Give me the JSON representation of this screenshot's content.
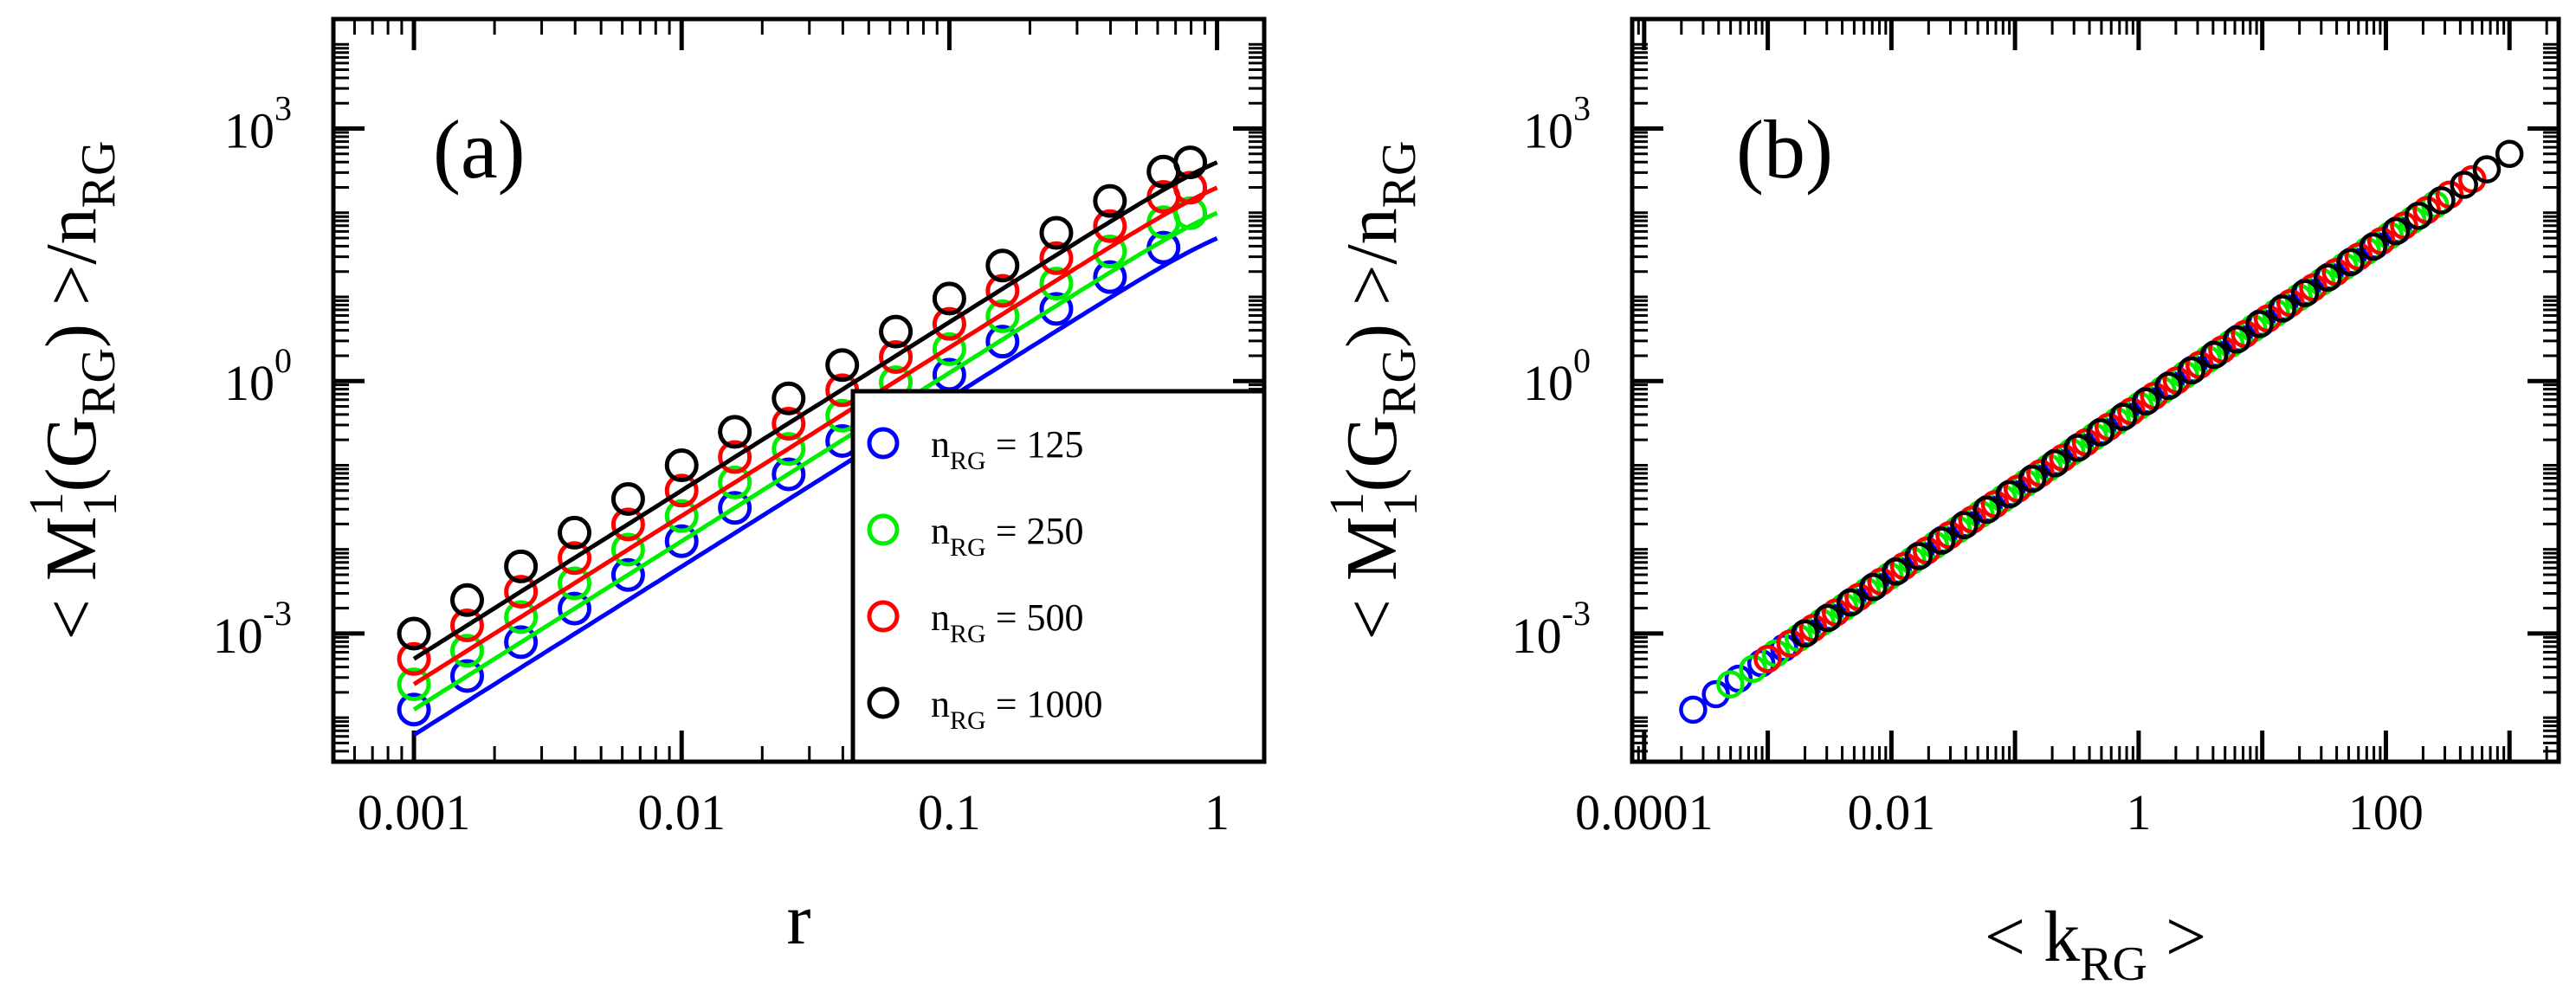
{
  "chart_data": [
    {
      "panel": "(a)",
      "type": "scatter",
      "xscale": "log",
      "yscale": "log",
      "xlim": [
        0.0005,
        1.5
      ],
      "ylim": [
        3e-05,
        20000
      ],
      "xticks": [
        "0.001",
        "0.01",
        "0.1",
        "1"
      ],
      "xticks_values": [
        0.001,
        0.01,
        0.1,
        1
      ],
      "yticks": [
        "10",
        "10",
        "10"
      ],
      "yticks_exp": [
        "-3",
        "0",
        "3"
      ],
      "yticks_values": [
        0.001,
        1,
        1000
      ],
      "xlabel": "r",
      "ylabel": {
        "pre": "< M",
        "sup": "1",
        "sub1": "1",
        "mid": "(G",
        "sub2": "RG",
        "post": ") >/n",
        "sub3": "RG"
      },
      "legend_placement": "lower-right",
      "fit_lines": true,
      "series": [
        {
          "name": {
            "base": "n",
            "sub": "RG",
            "tail": " = 125"
          },
          "n": 125,
          "color": "#0000ff",
          "x": [
            0.001,
            0.00158,
            0.00251,
            0.00398,
            0.00631,
            0.01,
            0.0158,
            0.0251,
            0.0398,
            0.0631,
            0.1,
            0.158,
            0.251,
            0.398,
            0.631
          ],
          "y": [
            0.000125,
            0.000313,
            0.00079,
            0.00198,
            0.00497,
            0.0125,
            0.0311,
            0.078,
            0.194,
            0.483,
            1.19,
            2.94,
            7.19,
            17.2,
            38.4
          ]
        },
        {
          "name": {
            "base": "n",
            "sub": "RG",
            "tail": " = 250"
          },
          "n": 250,
          "color": "#00ee00",
          "x": [
            0.001,
            0.00158,
            0.00251,
            0.00398,
            0.00631,
            0.01,
            0.0158,
            0.0251,
            0.0398,
            0.0631,
            0.1,
            0.158,
            0.251,
            0.398,
            0.631,
            0.794
          ],
          "y": [
            0.000249,
            0.000625,
            0.00157,
            0.00395,
            0.00993,
            0.0249,
            0.0623,
            0.156,
            0.388,
            0.967,
            2.39,
            5.89,
            14.4,
            34.6,
            77.1,
            98.9
          ]
        },
        {
          "name": {
            "base": "n",
            "sub": "RG",
            "tail": " = 500"
          },
          "n": 500,
          "color": "#ff0000",
          "x": [
            0.001,
            0.00158,
            0.00251,
            0.00398,
            0.00631,
            0.01,
            0.0158,
            0.0251,
            0.0398,
            0.0631,
            0.1,
            0.158,
            0.251,
            0.398,
            0.631,
            0.794
          ],
          "y": [
            0.000499,
            0.00125,
            0.00314,
            0.00789,
            0.0198,
            0.0499,
            0.125,
            0.311,
            0.776,
            1.93,
            4.78,
            11.8,
            28.8,
            69.2,
            154,
            198
          ]
        },
        {
          "name": {
            "base": "n",
            "sub": "RG",
            "tail": " = 1000"
          },
          "n": 1000,
          "color": "#000000",
          "x": [
            0.001,
            0.00158,
            0.00251,
            0.00398,
            0.00631,
            0.01,
            0.0158,
            0.0251,
            0.0398,
            0.0631,
            0.1,
            0.158,
            0.251,
            0.398,
            0.631,
            0.794
          ],
          "y": [
            0.000999,
            0.0025,
            0.00628,
            0.0158,
            0.0397,
            0.0998,
            0.249,
            0.623,
            1.55,
            3.87,
            9.56,
            23.6,
            57.6,
            138,
            308,
            396
          ]
        }
      ]
    },
    {
      "panel": "(b)",
      "type": "scatter",
      "xscale": "log",
      "yscale": "log",
      "xlim": [
        8e-05,
        2500
      ],
      "ylim": [
        3e-05,
        20000
      ],
      "xticks": [
        "0.0001",
        "0.01",
        "1",
        "100"
      ],
      "xticks_values": [
        0.0001,
        0.01,
        1,
        100
      ],
      "yticks": [
        "10",
        "10",
        "10"
      ],
      "yticks_exp": [
        "-3",
        "0",
        "3"
      ],
      "yticks_values": [
        0.001,
        1,
        1000
      ],
      "xlabel": {
        "pre": "< k",
        "sub": "RG",
        "post": " >"
      },
      "ylabel": {
        "pre": "< M",
        "sup": "1",
        "sub1": "1",
        "mid": "(G",
        "sub2": "RG",
        "post": ") >/n",
        "sub3": "RG"
      },
      "collapse": "y = k/2",
      "series_k_ranges": [
        {
          "n": 125,
          "color": "#0000ff",
          "kmin": 0.000249,
          "kmax": 125
        },
        {
          "n": 250,
          "color": "#00ee00",
          "kmin": 0.000498,
          "kmax": 250
        },
        {
          "n": 500,
          "color": "#ff0000",
          "kmin": 0.000998,
          "kmax": 500
        },
        {
          "n": 1000,
          "color": "#000000",
          "kmin": 0.002,
          "kmax": 1000
        }
      ],
      "points_per_series": 32
    }
  ]
}
